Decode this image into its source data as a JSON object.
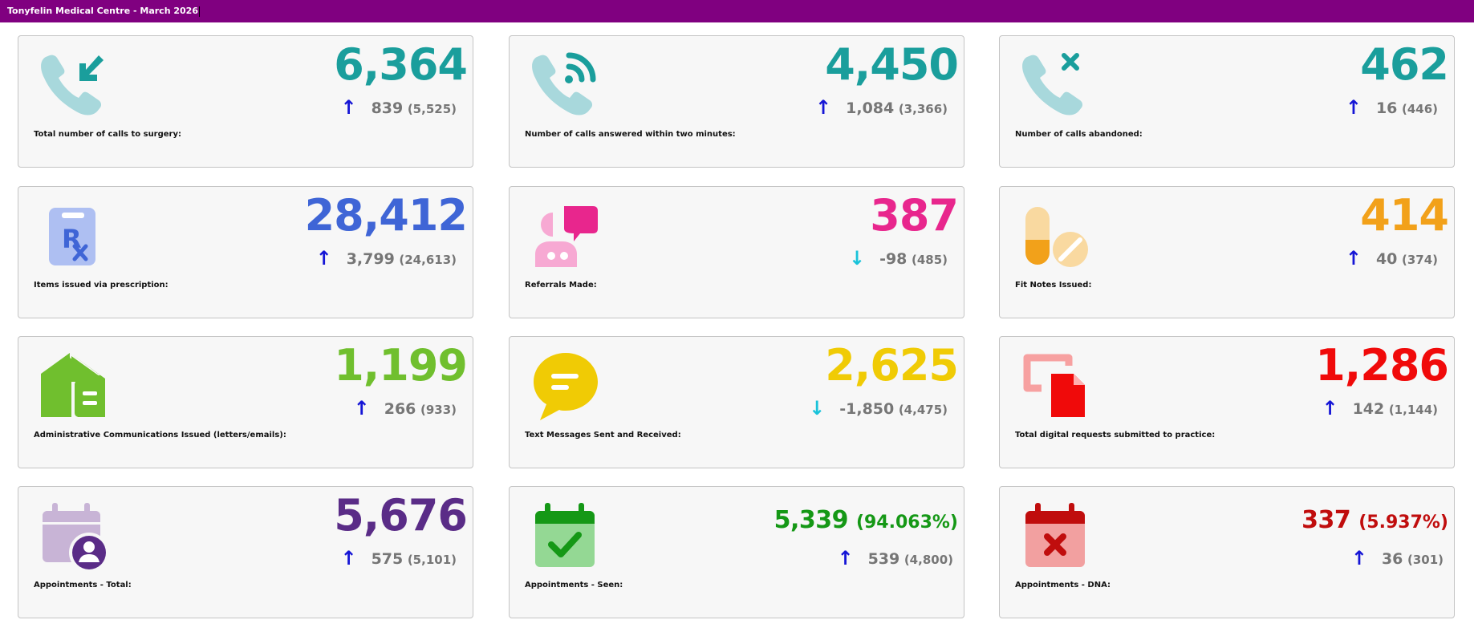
{
  "header": {
    "title": "Tonyfelin Medical Centre - March 2026"
  },
  "colors": {
    "titlebar": "#800080",
    "arrow_up": "#1515d6",
    "arrow_down": "#19c3da",
    "teal": "#1a9e9c",
    "blue": "#3f65d6",
    "pink": "#e8268d",
    "orange": "#f2a11a",
    "green": "#70bf2e",
    "yellow": "#f0cb05",
    "red": "#f00a0a",
    "purple": "#5a2c87",
    "seen_green": "#159816",
    "dna_red": "#c00d0d"
  },
  "cards": [
    {
      "label": "Total number of calls to surgery:",
      "value": "6,364",
      "change": "839",
      "previous": "(5,525)",
      "trend": "up",
      "icon": "incoming-call-icon"
    },
    {
      "label": "Number of calls answered within two minutes:",
      "value": "4,450",
      "change": "1,084",
      "previous": "(3,366)",
      "trend": "up",
      "icon": "call-signal-icon"
    },
    {
      "label": "Number of calls abandoned:",
      "value": "462",
      "change": "16",
      "previous": "(446)",
      "trend": "up",
      "icon": "missed-call-icon"
    },
    {
      "label": "Items issued via prescription:",
      "value": "28,412",
      "change": "3,799",
      "previous": "(24,613)",
      "trend": "up",
      "icon": "prescription-icon"
    },
    {
      "label": "Referrals Made:",
      "value": "387",
      "change": "-98",
      "previous": "(485)",
      "trend": "down",
      "icon": "doctor-consult-icon"
    },
    {
      "label": "Fit Notes Issued:",
      "value": "414",
      "change": "40",
      "previous": "(374)",
      "trend": "up",
      "icon": "pills-icon"
    },
    {
      "label": "Administrative Communications Issued (letters/emails):",
      "value": "1,199",
      "change": "266",
      "previous": "(933)",
      "trend": "up",
      "icon": "home-mail-icon"
    },
    {
      "label": "Text Messages Sent and Received:",
      "value": "2,625",
      "change": "-1,850",
      "previous": "(4,475)",
      "trend": "down",
      "icon": "chat-bubble-icon"
    },
    {
      "label": "Total digital requests submitted to practice:",
      "value": "1,286",
      "change": "142",
      "previous": "(1,144)",
      "trend": "up",
      "icon": "document-transfer-icon"
    },
    {
      "label": "Appointments - Total:",
      "value": "5,676",
      "percent": "",
      "change": "575",
      "previous": "(5,101)",
      "trend": "up",
      "icon": "calendar-user-icon"
    },
    {
      "label": "Appointments - Seen:",
      "value": "5,339",
      "percent": "(94.063%)",
      "change": "539",
      "previous": "(4,800)",
      "trend": "up",
      "icon": "calendar-check-icon"
    },
    {
      "label": "Appointments - DNA:",
      "value": "337",
      "percent": "(5.937%)",
      "change": "36",
      "previous": "(301)",
      "trend": "up",
      "icon": "calendar-cross-icon"
    }
  ]
}
